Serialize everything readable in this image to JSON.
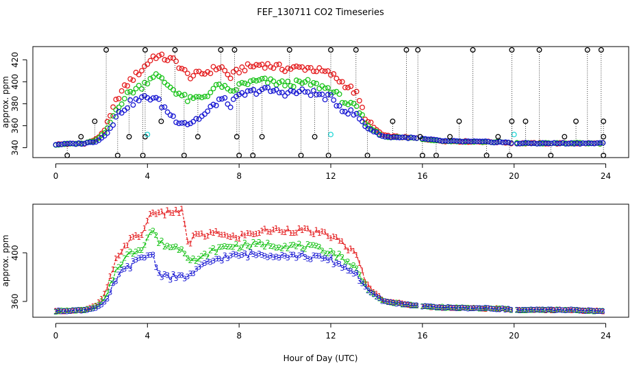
{
  "figure": {
    "title": "FEF_130711  CO2 Timeseries",
    "xlabel": "Hour of Day (UTC)"
  },
  "colors": {
    "black": "#000000",
    "red": "#e41a1c",
    "green": "#19c319",
    "blue": "#1414d2",
    "cyan": "#25d8d8"
  },
  "chart_data": [
    {
      "type": "scatter",
      "ylabel": "approx. ppm",
      "xlim": [
        -1,
        25
      ],
      "ylim": [
        331,
        432
      ],
      "xticks": [
        0,
        4,
        8,
        12,
        16,
        20,
        24
      ],
      "yticks": [
        340,
        360,
        380,
        400,
        420
      ],
      "ytick_labels": [
        "340",
        "360",
        "380",
        "400",
        "420"
      ],
      "grid": false,
      "legend": "none",
      "profile": {
        "x": [
          0,
          1.3,
          1.8,
          2.2,
          2.7,
          3.2,
          3.8,
          4.3,
          5.2,
          5.8,
          6.5,
          7.2,
          7.6,
          8.1,
          9.0,
          10.0,
          11.0,
          12.0,
          12.6,
          13.1,
          13.6,
          14.3,
          15.5,
          16.0,
          17.0,
          19.5,
          20.0,
          22.5,
          23.9
        ],
        "red": [
          343,
          344,
          348,
          358,
          386,
          400,
          412,
          424,
          419,
          405,
          408,
          414,
          404,
          412,
          416,
          412,
          413,
          407,
          398,
          390,
          363,
          351,
          349,
          348,
          346,
          345,
          344,
          344,
          344
        ],
        "green": [
          343,
          344,
          347,
          355,
          378,
          390,
          397,
          407,
          392,
          383,
          387,
          398,
          389,
          398,
          401,
          398,
          399,
          393,
          382,
          376,
          360,
          350,
          349,
          348,
          346,
          345,
          344,
          344,
          344
        ],
        "blue": [
          343,
          344,
          346,
          352,
          370,
          380,
          385,
          386,
          366,
          362,
          370,
          385,
          379,
          388,
          393,
          390,
          391,
          385,
          374,
          370,
          358,
          350,
          349,
          348,
          346,
          345,
          344,
          344,
          344
        ]
      },
      "gaps": [
        [
          15.8,
          16.0
        ],
        [
          19.9,
          20.1
        ]
      ],
      "spikes": [
        {
          "x": 0.5,
          "y": 333
        },
        {
          "x": 1.1,
          "y": 350
        },
        {
          "x": 1.7,
          "y": 364
        },
        {
          "x": 2.2,
          "y": 429
        },
        {
          "x": 2.7,
          "y": 333
        },
        {
          "x": 3.2,
          "y": 350
        },
        {
          "x": 3.8,
          "y": 333
        },
        {
          "x": 3.9,
          "y": 350
        },
        {
          "x": 3.9,
          "y": 429
        },
        {
          "x": 4.6,
          "y": 364
        },
        {
          "x": 5.2,
          "y": 429
        },
        {
          "x": 5.6,
          "y": 333
        },
        {
          "x": 6.2,
          "y": 350
        },
        {
          "x": 7.2,
          "y": 429
        },
        {
          "x": 7.8,
          "y": 429
        },
        {
          "x": 7.9,
          "y": 350
        },
        {
          "x": 8.0,
          "y": 333
        },
        {
          "x": 8.6,
          "y": 333
        },
        {
          "x": 9.0,
          "y": 350
        },
        {
          "x": 10.2,
          "y": 429
        },
        {
          "x": 10.7,
          "y": 333
        },
        {
          "x": 11.3,
          "y": 350
        },
        {
          "x": 11.9,
          "y": 333
        },
        {
          "x": 12.0,
          "y": 429
        },
        {
          "x": 13.1,
          "y": 429
        },
        {
          "x": 13.6,
          "y": 333
        },
        {
          "x": 14.7,
          "y": 364
        },
        {
          "x": 15.3,
          "y": 429
        },
        {
          "x": 15.8,
          "y": 429
        },
        {
          "x": 15.9,
          "y": 350
        },
        {
          "x": 16.0,
          "y": 333
        },
        {
          "x": 16.6,
          "y": 333
        },
        {
          "x": 17.2,
          "y": 350
        },
        {
          "x": 17.6,
          "y": 364
        },
        {
          "x": 18.2,
          "y": 429
        },
        {
          "x": 18.8,
          "y": 333
        },
        {
          "x": 19.3,
          "y": 350
        },
        {
          "x": 19.8,
          "y": 333
        },
        {
          "x": 19.9,
          "y": 364
        },
        {
          "x": 19.9,
          "y": 429
        },
        {
          "x": 20.5,
          "y": 364
        },
        {
          "x": 21.1,
          "y": 429
        },
        {
          "x": 21.6,
          "y": 333
        },
        {
          "x": 22.2,
          "y": 350
        },
        {
          "x": 22.7,
          "y": 364
        },
        {
          "x": 23.2,
          "y": 429
        },
        {
          "x": 23.8,
          "y": 429
        },
        {
          "x": 23.9,
          "y": 364
        },
        {
          "x": 23.9,
          "y": 350
        },
        {
          "x": 23.9,
          "y": 333
        }
      ],
      "cyan_points": [
        {
          "x": 4.0,
          "y": 352
        },
        {
          "x": 12.0,
          "y": 352
        },
        {
          "x": 20.0,
          "y": 352
        }
      ]
    },
    {
      "type": "line",
      "ylabel": "approx. ppm",
      "xlim": [
        -1,
        25
      ],
      "ylim": [
        347,
        440
      ],
      "xticks": [
        0,
        4,
        8,
        12,
        16,
        20,
        24
      ],
      "yticks": [
        360,
        400
      ],
      "ytick_labels": [
        "360",
        "400"
      ],
      "grid": false,
      "legend": "none",
      "series_markers": [
        "1",
        "2",
        "3"
      ],
      "profile": {
        "x": [
          0,
          1.3,
          1.8,
          2.2,
          2.7,
          3.2,
          3.8,
          4.2,
          4.5,
          5.0,
          5.5,
          5.8,
          6.2,
          6.5,
          7.0,
          7.6,
          8.1,
          9.0,
          10.0,
          11.0,
          12.0,
          12.6,
          13.1,
          13.6,
          14.3,
          15.5,
          16.0,
          17.0,
          19.5,
          20.0,
          22.5,
          23.9
        ],
        "red": [
          352,
          353,
          357,
          368,
          398,
          410,
          416,
          436,
          431,
          434,
          434,
          406,
          418,
          412,
          418,
          412,
          414,
          418,
          419,
          418,
          414,
          407,
          398,
          373,
          361,
          357,
          356,
          355,
          354,
          353,
          353,
          352
        ],
        "green": [
          352,
          353,
          356,
          364,
          389,
          399,
          405,
          420,
          409,
          405,
          404,
          397,
          393,
          398,
          403,
          406,
          406,
          407,
          406,
          405,
          401,
          395,
          387,
          370,
          360,
          357,
          356,
          355,
          354,
          353,
          353,
          352
        ],
        "blue": [
          352,
          353,
          355,
          360,
          381,
          389,
          396,
          400,
          383,
          380,
          380,
          381,
          386,
          390,
          395,
          397,
          398,
          399,
          398,
          397,
          394,
          388,
          383,
          369,
          360,
          357,
          356,
          355,
          354,
          353,
          353,
          352
        ]
      },
      "gaps": [
        [
          15.8,
          16.0
        ],
        [
          19.9,
          20.1
        ]
      ]
    }
  ]
}
